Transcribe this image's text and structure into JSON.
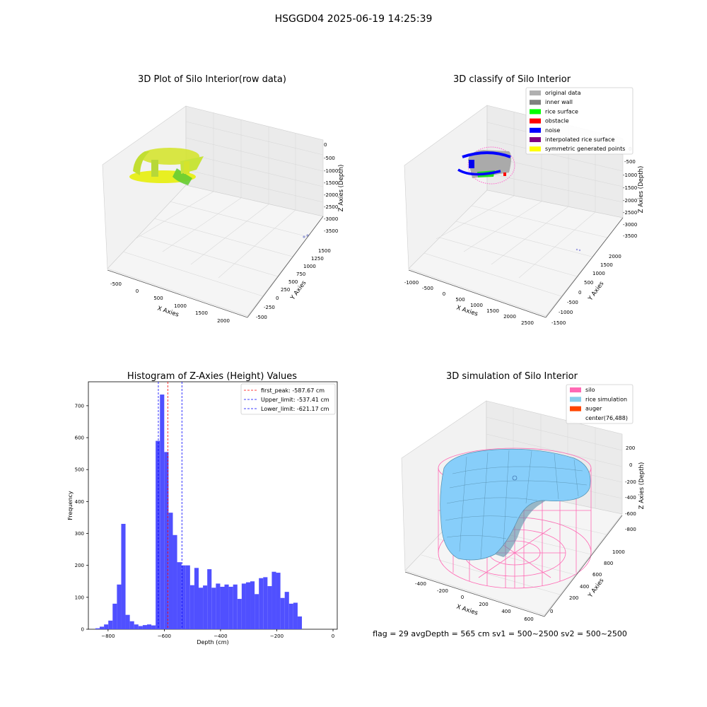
{
  "figure": {
    "suptitle": "HSGGD04 2025-06-19 14:25:39",
    "status_line": "flag = 29  avgDepth = 565 cm  sv1 = 500~2500  sv2 = 500~2500"
  },
  "colors": {
    "background": "#ffffff",
    "pane": "#f2f2f2",
    "grid": "#d9d9d9",
    "histogram_bar": "#5050ff",
    "first_peak_line": "#ff0000",
    "limit_lines": "#0000ff",
    "silo_wireframe": "#ff69b4",
    "rice_surface": "#87cefa"
  },
  "panels": {
    "raw": {
      "title": "3D Plot of Silo Interior(row data)",
      "xlabel": "X Axies",
      "ylabel": "Y Axies",
      "zlabel": "Z Axies (Depth)",
      "xticks": [
        "-500",
        "0",
        "500",
        "1000",
        "1500",
        "2000"
      ],
      "yticks": [
        "-500",
        "-250",
        "0",
        "250",
        "500",
        "750",
        "1000",
        "1250",
        "1500"
      ],
      "zticks": [
        "0",
        "-500",
        "-1000",
        "-1500",
        "-2000",
        "-2500",
        "-3000",
        "-3500"
      ]
    },
    "classify": {
      "title": "3D classify of Silo Interior",
      "xlabel": "X Axies",
      "ylabel": "Y Axies",
      "zlabel": "Z Axies (Depth)",
      "xticks": [
        "-1000",
        "-500",
        "0",
        "500",
        "1000",
        "1500",
        "2000",
        "2500"
      ],
      "yticks": [
        "-1500",
        "-1000",
        "-500",
        "0",
        "500",
        "1000",
        "1500",
        "2000"
      ],
      "zticks": [
        "0",
        "-500",
        "-1000",
        "-1500",
        "-2000",
        "-2500",
        "-3000",
        "-3500"
      ],
      "legend": [
        {
          "label": "original data",
          "color": "#b0b0b0"
        },
        {
          "label": "inner wall",
          "color": "#808080"
        },
        {
          "label": "rice surface",
          "color": "#00ff00"
        },
        {
          "label": "obstacle",
          "color": "#ff0000"
        },
        {
          "label": "noise",
          "color": "#0000ff"
        },
        {
          "label": "interpolated rice surface",
          "color": "#800080"
        },
        {
          "label": "symmetric generated points",
          "color": "#ffff00"
        }
      ]
    },
    "simulation": {
      "title": "3D simulation of Silo Interior",
      "xlabel": "X Axies",
      "ylabel": "Y Axies",
      "zlabel": "Z Axies (Depth)",
      "xticks": [
        "-400",
        "-200",
        "0",
        "200",
        "400",
        "600"
      ],
      "yticks": [
        "0",
        "200",
        "400",
        "600",
        "800",
        "1000"
      ],
      "zticks": [
        "200",
        "0",
        "-200",
        "-400",
        "-600",
        "-800"
      ],
      "legend": [
        {
          "label": "silo",
          "color": "#ff69b4"
        },
        {
          "label": "rice simulation",
          "color": "#87ceeb"
        },
        {
          "label": "auger",
          "color": "#ff4500"
        },
        {
          "label": "center(76,488)",
          "color": ""
        }
      ]
    }
  },
  "chart_data": {
    "type": "bar",
    "title": "Histogram of Z-Axies (Height) Values",
    "xlabel": "Depth (cm)",
    "ylabel": "Frequency",
    "xlim": [
      -870,
      15
    ],
    "ylim": [
      0,
      775
    ],
    "xticks": [
      -800,
      -600,
      -400,
      -200,
      0
    ],
    "yticks": [
      0,
      100,
      200,
      300,
      400,
      500,
      600,
      700
    ],
    "bin_start": -845,
    "bin_width": 15.3,
    "values": [
      3,
      8,
      15,
      27,
      80,
      140,
      330,
      45,
      25,
      15,
      10,
      13,
      15,
      12,
      590,
      735,
      555,
      365,
      295,
      210,
      200,
      200,
      138,
      192,
      130,
      137,
      188,
      130,
      143,
      133,
      140,
      133,
      140,
      95,
      143,
      147,
      150,
      110,
      160,
      163,
      135,
      180,
      177,
      98,
      117,
      80,
      83,
      40
    ],
    "reference_lines": [
      {
        "name": "first_peak",
        "value": -587.67,
        "label": "first_peak: -587.67 cm",
        "color": "#ff0000"
      },
      {
        "name": "upper_limit",
        "value": -537.41,
        "label": "Upper_limit: -537.41 cm",
        "color": "#0000ff"
      },
      {
        "name": "lower_limit",
        "value": -621.17,
        "label": "Lower_limit: -621.17 cm",
        "color": "#0000ff"
      }
    ],
    "legend_position": "top-right",
    "grid": false
  }
}
